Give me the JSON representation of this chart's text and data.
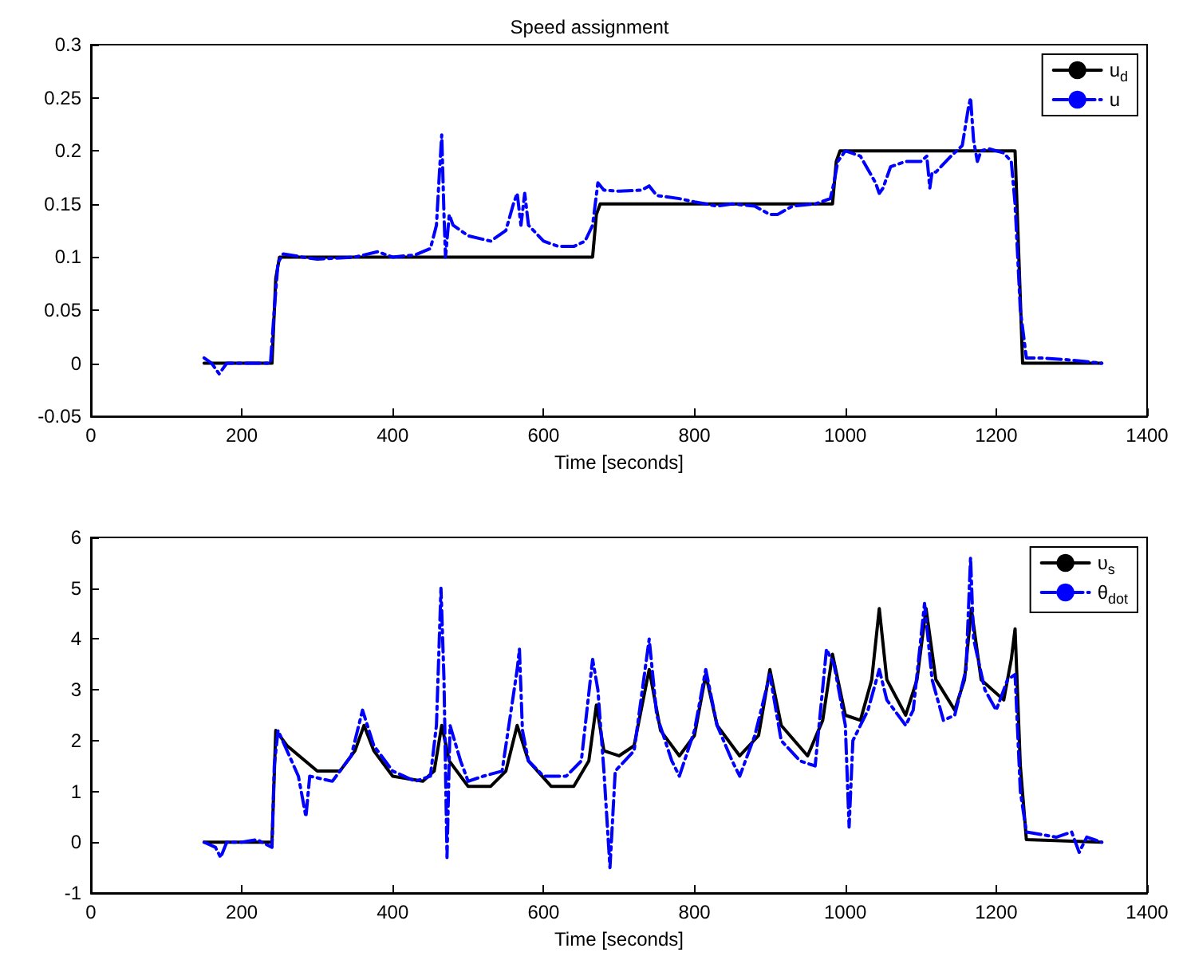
{
  "chart_data": [
    {
      "type": "line",
      "title": "Speed assignment",
      "xlabel": "Time [seconds]",
      "xlim": [
        0,
        1400
      ],
      "xticks": [
        0,
        200,
        400,
        600,
        800,
        1000,
        1200,
        1400
      ],
      "ylim": [
        -0.05,
        0.3
      ],
      "yticks": [
        -0.05,
        0,
        0.05,
        0.1,
        0.15,
        0.2,
        0.25,
        0.3
      ],
      "grid": false,
      "legend": "top right",
      "marker": "none",
      "series": [
        {
          "name": "u$_{d}$",
          "color": "#000000",
          "line_style": "solid",
          "x": [
            150,
            240,
            245,
            250,
            665,
            670,
            675,
            983,
            988,
            993,
            1225,
            1230,
            1235,
            1340
          ],
          "values": [
            0,
            0,
            0.08,
            0.1,
            0.1,
            0.14,
            0.15,
            0.15,
            0.19,
            0.2,
            0.2,
            0.1,
            0,
            0
          ]
        },
        {
          "name": "u",
          "color": "#0000ff",
          "line_style": "dashdot",
          "x": [
            150,
            160,
            170,
            180,
            200,
            230,
            238,
            243,
            248,
            255,
            280,
            300,
            350,
            380,
            400,
            430,
            450,
            458,
            462,
            465,
            468,
            470,
            475,
            480,
            500,
            530,
            550,
            560,
            565,
            570,
            575,
            580,
            600,
            620,
            640,
            655,
            665,
            672,
            680,
            700,
            730,
            740,
            750,
            780,
            800,
            830,
            850,
            880,
            900,
            910,
            930,
            960,
            980,
            985,
            990,
            1000,
            1020,
            1040,
            1045,
            1050,
            1060,
            1080,
            1100,
            1108,
            1112,
            1115,
            1120,
            1140,
            1155,
            1163,
            1166,
            1170,
            1175,
            1180,
            1190,
            1210,
            1220,
            1225,
            1232,
            1240,
            1260,
            1300,
            1340
          ],
          "values": [
            0.005,
            0,
            -0.01,
            0,
            0,
            0,
            0,
            0.05,
            0.095,
            0.103,
            0.1,
            0.098,
            0.1,
            0.105,
            0.1,
            0.102,
            0.108,
            0.13,
            0.18,
            0.215,
            0.14,
            0.1,
            0.14,
            0.13,
            0.12,
            0.115,
            0.125,
            0.15,
            0.16,
            0.13,
            0.16,
            0.13,
            0.115,
            0.11,
            0.11,
            0.115,
            0.13,
            0.17,
            0.163,
            0.162,
            0.163,
            0.167,
            0.158,
            0.155,
            0.152,
            0.148,
            0.15,
            0.148,
            0.14,
            0.14,
            0.148,
            0.15,
            0.155,
            0.17,
            0.19,
            0.2,
            0.195,
            0.17,
            0.16,
            0.165,
            0.185,
            0.19,
            0.19,
            0.195,
            0.165,
            0.18,
            0.18,
            0.195,
            0.205,
            0.24,
            0.25,
            0.21,
            0.19,
            0.2,
            0.202,
            0.198,
            0.19,
            0.15,
            0.05,
            0.005,
            0.005,
            0.003,
            0
          ]
        }
      ]
    },
    {
      "type": "line",
      "xlabel": "Time [seconds]",
      "xlim": [
        0,
        1400
      ],
      "xticks": [
        0,
        200,
        400,
        600,
        800,
        1000,
        1200,
        1400
      ],
      "ylim": [
        -1,
        6
      ],
      "yticks": [
        -1,
        0,
        1,
        2,
        3,
        4,
        5,
        6
      ],
      "grid": false,
      "legend": "top right",
      "marker": "none",
      "series": [
        {
          "name": "υ$_{s}$",
          "color": "#000000",
          "line_style": "solid",
          "x": [
            150,
            240,
            245,
            260,
            300,
            330,
            350,
            362,
            375,
            400,
            440,
            455,
            465,
            475,
            500,
            530,
            550,
            565,
            580,
            610,
            640,
            660,
            670,
            680,
            700,
            720,
            740,
            755,
            780,
            800,
            815,
            830,
            860,
            885,
            900,
            915,
            950,
            970,
            983,
            1000,
            1020,
            1035,
            1045,
            1055,
            1080,
            1095,
            1107,
            1120,
            1145,
            1158,
            1167,
            1180,
            1210,
            1220,
            1225,
            1232,
            1240,
            1340
          ],
          "values": [
            0,
            0,
            2.2,
            1.9,
            1.4,
            1.4,
            1.8,
            2.3,
            1.8,
            1.3,
            1.2,
            1.4,
            2.3,
            1.6,
            1.1,
            1.1,
            1.4,
            2.3,
            1.6,
            1.1,
            1.1,
            1.6,
            2.7,
            1.8,
            1.7,
            1.9,
            3.4,
            2.2,
            1.7,
            2.1,
            3.3,
            2.3,
            1.7,
            2.1,
            3.4,
            2.3,
            1.7,
            2.4,
            3.7,
            2.5,
            2.4,
            3.2,
            4.6,
            3.2,
            2.5,
            3.2,
            4.6,
            3.2,
            2.6,
            3.2,
            4.6,
            3.2,
            2.8,
            3.6,
            4.2,
            1.5,
            0.05,
            0
          ]
        },
        {
          "name": "θ$_{dot}$",
          "color": "#0000ff",
          "line_style": "dashdot",
          "x": [
            150,
            165,
            172,
            180,
            200,
            220,
            240,
            243,
            248,
            260,
            275,
            285,
            290,
            320,
            345,
            360,
            375,
            400,
            430,
            450,
            458,
            464,
            468,
            472,
            476,
            490,
            500,
            520,
            545,
            558,
            565,
            568,
            572,
            580,
            600,
            630,
            650,
            665,
            672,
            680,
            688,
            695,
            720,
            740,
            750,
            770,
            780,
            800,
            815,
            830,
            850,
            860,
            880,
            900,
            915,
            940,
            960,
            975,
            985,
            1000,
            1005,
            1010,
            1030,
            1045,
            1055,
            1080,
            1090,
            1105,
            1115,
            1130,
            1145,
            1160,
            1166,
            1170,
            1185,
            1200,
            1215,
            1225,
            1232,
            1240,
            1280,
            1300,
            1310,
            1320,
            1340
          ],
          "values": [
            0,
            -0.1,
            -0.3,
            0,
            0,
            0.05,
            -0.1,
            1.5,
            2.2,
            1.8,
            1.3,
            0.5,
            1.3,
            1.2,
            1.7,
            2.6,
            1.9,
            1.4,
            1.2,
            1.3,
            2.3,
            5,
            3.2,
            -0.3,
            2.3,
            1.6,
            1.2,
            1.3,
            1.4,
            2.7,
            3.4,
            3.8,
            2.2,
            1.6,
            1.3,
            1.3,
            1.6,
            3.6,
            3,
            1.4,
            -0.5,
            1.4,
            1.8,
            4,
            2.5,
            1.6,
            1.3,
            2.2,
            3.4,
            2.3,
            1.6,
            1.3,
            2.1,
            3.3,
            2,
            1.6,
            1.5,
            3.8,
            3.5,
            2.3,
            0.3,
            2,
            2.6,
            3.4,
            2.8,
            2.3,
            2.6,
            4.7,
            3.2,
            2.4,
            2.5,
            3.4,
            5.6,
            4,
            3,
            2.6,
            3.2,
            3.3,
            1,
            0.2,
            0.1,
            0.2,
            -0.2,
            0.1,
            0
          ]
        }
      ]
    }
  ]
}
